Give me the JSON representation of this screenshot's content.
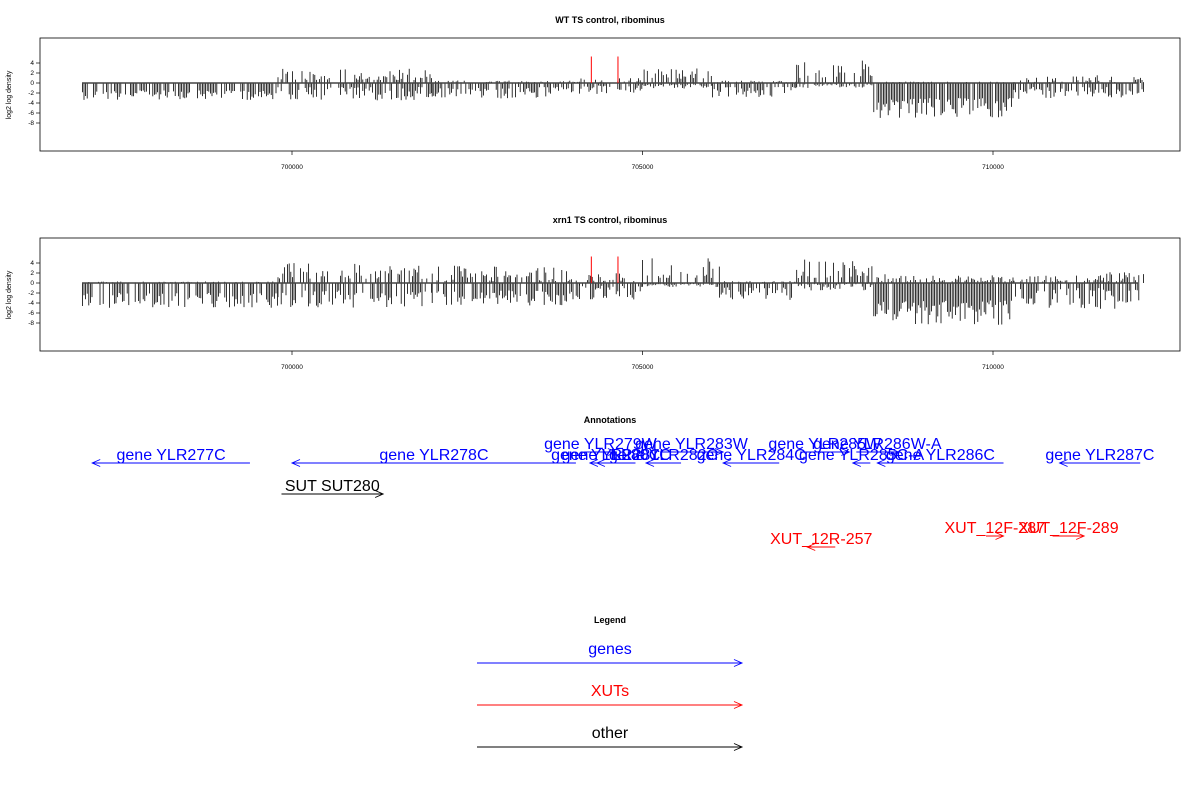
{
  "colors": {
    "density": "#000000",
    "marker": "#ff0000",
    "gene": "#0000ff",
    "xut": "#ff0000",
    "other": "#000000"
  },
  "chart_data": [
    {
      "type": "bar",
      "title": "WT TS control, ribominus",
      "ylabel": "log2 log density",
      "xlim": [
        697000,
        712200
      ],
      "ylim": [
        -9,
        6
      ],
      "xticks": [
        700000,
        705000,
        710000
      ],
      "xtick_labels": [
        "700000",
        "705000",
        "710000"
      ],
      "yticks": [
        4,
        2,
        0,
        -2,
        -4,
        -6,
        -8
      ],
      "ytick_labels": [
        "4",
        "2",
        "0",
        "-2",
        "-4",
        "-6",
        "-8"
      ],
      "grid": false,
      "marker_lines": [
        {
          "x": 704270,
          "y": 5.3
        },
        {
          "x": 704650,
          "y": 5.3
        }
      ],
      "density_profile": [
        {
          "x0": 697010,
          "x1": 699800,
          "pos": [
            0,
            0
          ],
          "neg": [
            -1.5,
            -3.4
          ]
        },
        {
          "x0": 699800,
          "x1": 702000,
          "pos": [
            0.6,
            3.0
          ],
          "neg": [
            -0.8,
            -3.6
          ]
        },
        {
          "x0": 702000,
          "x1": 704100,
          "pos": [
            0,
            0.5
          ],
          "neg": [
            -0.8,
            -3.2
          ]
        },
        {
          "x0": 704100,
          "x1": 705000,
          "pos": [
            0,
            1.0
          ],
          "neg": [
            -0.5,
            -2.4
          ]
        },
        {
          "x0": 705000,
          "x1": 706000,
          "pos": [
            0.8,
            3.0
          ],
          "neg": [
            -0.3,
            -1.2
          ]
        },
        {
          "x0": 706000,
          "x1": 707200,
          "pos": [
            0,
            0.5
          ],
          "neg": [
            -0.8,
            -3.0
          ]
        },
        {
          "x0": 707200,
          "x1": 708300,
          "pos": [
            1.0,
            4.5
          ],
          "neg": [
            -0.2,
            -1.0
          ]
        },
        {
          "x0": 708300,
          "x1": 710300,
          "pos": [
            0,
            0.3
          ],
          "neg": [
            -3.0,
            -7.0
          ]
        },
        {
          "x0": 710300,
          "x1": 712150,
          "pos": [
            0,
            1.6
          ],
          "neg": [
            -0.8,
            -3.2
          ]
        }
      ]
    },
    {
      "type": "bar",
      "title": "xrn1 TS control, ribominus",
      "ylabel": "log2 log density",
      "xlim": [
        697000,
        712200
      ],
      "ylim": [
        -9,
        6
      ],
      "xticks": [
        700000,
        705000,
        710000
      ],
      "xtick_labels": [
        "700000",
        "705000",
        "710000"
      ],
      "yticks": [
        4,
        2,
        0,
        -2,
        -4,
        -6,
        -8
      ],
      "ytick_labels": [
        "4",
        "2",
        "0",
        "-2",
        "-4",
        "-6",
        "-8"
      ],
      "grid": false,
      "marker_lines": [
        {
          "x": 704270,
          "y": 5.3
        },
        {
          "x": 704650,
          "y": 5.3
        }
      ],
      "density_profile": [
        {
          "x0": 697010,
          "x1": 699800,
          "pos": [
            0,
            0.3
          ],
          "neg": [
            -2.0,
            -5.0
          ]
        },
        {
          "x0": 699800,
          "x1": 702000,
          "pos": [
            0.8,
            4.0
          ],
          "neg": [
            -1.5,
            -5.0
          ]
        },
        {
          "x0": 702000,
          "x1": 704100,
          "pos": [
            0.4,
            3.5
          ],
          "neg": [
            -1.5,
            -4.5
          ]
        },
        {
          "x0": 704100,
          "x1": 705000,
          "pos": [
            0.4,
            2.0
          ],
          "neg": [
            -0.5,
            -3.5
          ]
        },
        {
          "x0": 705000,
          "x1": 706100,
          "pos": [
            1.0,
            5.3
          ],
          "neg": [
            -0.2,
            -0.8
          ]
        },
        {
          "x0": 706100,
          "x1": 707200,
          "pos": [
            0,
            0.4
          ],
          "neg": [
            -0.8,
            -3.4
          ]
        },
        {
          "x0": 707200,
          "x1": 708300,
          "pos": [
            1.0,
            4.7
          ],
          "neg": [
            -0.2,
            -1.5
          ]
        },
        {
          "x0": 708300,
          "x1": 710300,
          "pos": [
            0.3,
            1.8
          ],
          "neg": [
            -3.5,
            -8.4
          ]
        },
        {
          "x0": 710300,
          "x1": 712150,
          "pos": [
            0.3,
            2.3
          ],
          "neg": [
            -1.0,
            -5.4
          ]
        }
      ]
    }
  ],
  "annotations": {
    "title": "Annotations",
    "features": [
      {
        "label": "gene YLR277C",
        "type": "gene",
        "strand": "-",
        "start": 697150,
        "end": 699400,
        "row": 1
      },
      {
        "label": "gene YLR278C",
        "type": "gene",
        "strand": "-",
        "start": 700000,
        "end": 704050,
        "row": 1
      },
      {
        "label": "gene YLR279W",
        "type": "gene",
        "strand": "+",
        "start": 704180,
        "end": 704620,
        "row": 0
      },
      {
        "label": "gene YLR280C",
        "type": "gene",
        "strand": "-",
        "start": 704250,
        "end": 704700,
        "row": 1
      },
      {
        "label": "gene YLR281C",
        "type": "gene",
        "strand": "-",
        "start": 704350,
        "end": 704900,
        "row": 1
      },
      {
        "label": "gene YLR282C",
        "type": "gene",
        "strand": "-",
        "start": 705050,
        "end": 705550,
        "row": 1
      },
      {
        "label": "gene YLR283W",
        "type": "gene",
        "strand": "+",
        "start": 705250,
        "end": 706150,
        "row": 0
      },
      {
        "label": "gene YLR284C",
        "type": "gene",
        "strand": "-",
        "start": 706150,
        "end": 706950,
        "row": 1
      },
      {
        "label": "gene YLR285W",
        "type": "gene",
        "strand": "+",
        "start": 707250,
        "end": 707950,
        "row": 0
      },
      {
        "label": "gene YLR285C-A",
        "type": "gene",
        "strand": "-",
        "start": 708000,
        "end": 708250,
        "row": 1
      },
      {
        "label": "gene YLR286W-A",
        "type": "gene",
        "strand": "+",
        "start": 708050,
        "end": 708650,
        "row": 0
      },
      {
        "label": "gene YLR286C",
        "type": "gene",
        "strand": "-",
        "start": 708350,
        "end": 710150,
        "row": 1
      },
      {
        "label": "gene YLR287C",
        "type": "gene",
        "strand": "-",
        "start": 710950,
        "end": 712100,
        "row": 1
      },
      {
        "label": "SUT SUT280",
        "type": "other",
        "strand": "+",
        "start": 699850,
        "end": 701300,
        "row": 3
      },
      {
        "label": "XUT_12R-257",
        "type": "xut",
        "strand": "-",
        "start": 707350,
        "end": 707750,
        "row": 7
      },
      {
        "label": "XUT_12F-287",
        "type": "xut",
        "strand": "+",
        "start": 709900,
        "end": 710150,
        "row": 6
      },
      {
        "label": "XUT_12F-289",
        "type": "xut",
        "strand": "+",
        "start": 710850,
        "end": 711300,
        "row": 6
      }
    ]
  },
  "legend": {
    "title": "Legend",
    "items": [
      {
        "label": "genes",
        "type": "gene"
      },
      {
        "label": "XUTs",
        "type": "xut"
      },
      {
        "label": "other",
        "type": "other"
      }
    ]
  }
}
